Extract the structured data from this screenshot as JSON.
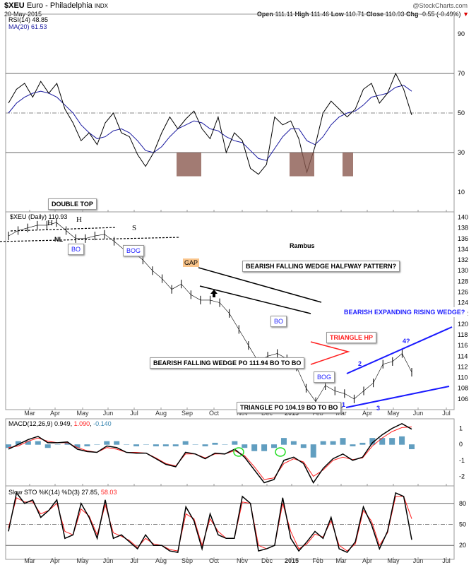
{
  "header": {
    "symbol": "$XEU",
    "name": "Euro - Philadelphia",
    "exchange": "INDX",
    "date": "20-May-2015",
    "copyright": "@StockCharts.com",
    "open_label": "Open",
    "open": "111.11",
    "high_label": "High",
    "high": "111.46",
    "low_label": "Low",
    "low": "110.71",
    "close_label": "Close",
    "close": "110.93",
    "chg_label": "Chg",
    "chg": "-0.55 (-0.49%)"
  },
  "colors": {
    "price": "#000000",
    "ma": "#1a1aa0",
    "signal": "#ff2020",
    "hist": "#3a86b0",
    "wedge": "#1a1aff",
    "triangle": "#ff2020",
    "fill": "#8b5a50",
    "circle": "#22dd22"
  },
  "chart_data": [
    {
      "type": "line",
      "title": "RSI(14) 48.85",
      "ma_label": "MA(20) 61.53",
      "yticks": [
        "90",
        "70",
        "50",
        "30",
        "10"
      ],
      "ylim": [
        0,
        100
      ],
      "rsi": [
        55,
        62,
        65,
        58,
        66,
        60,
        65,
        52,
        45,
        36,
        40,
        34,
        45,
        50,
        40,
        38,
        29,
        23,
        30,
        40,
        48,
        42,
        47,
        51,
        42,
        37,
        48,
        30,
        40,
        36,
        22,
        19,
        24,
        48,
        44,
        46,
        37,
        20,
        33,
        50,
        56,
        52,
        48,
        52,
        62,
        65,
        55,
        60,
        70,
        62,
        49
      ],
      "ma": [
        50,
        55,
        58,
        60,
        61,
        60,
        58,
        54,
        50,
        44,
        40,
        37,
        38,
        41,
        42,
        40,
        36,
        31,
        30,
        33,
        38,
        42,
        44,
        46,
        45,
        42,
        41,
        38,
        36,
        35,
        31,
        27,
        26,
        32,
        38,
        42,
        42,
        36,
        34,
        38,
        44,
        48,
        50,
        51,
        54,
        58,
        59,
        60,
        63,
        64,
        61
      ]
    },
    {
      "type": "line",
      "title": "$XEU (Daily) 110.93",
      "yticks": [
        "140",
        "138",
        "136",
        "134",
        "132",
        "130",
        "128",
        "126",
        "124",
        "122",
        "120",
        "118",
        "116",
        "114",
        "112",
        "110",
        "108",
        "106"
      ],
      "ylim": [
        104,
        141
      ],
      "price": [
        136.5,
        137.5,
        138,
        138.5,
        138.5,
        139,
        137.5,
        136,
        136,
        136.5,
        136.8,
        135.5,
        134,
        133.5,
        132,
        130,
        128.5,
        126.5,
        127.5,
        125.5,
        124.5,
        124.5,
        124,
        122,
        119,
        116,
        113,
        114,
        114.5,
        113.5,
        112,
        108,
        105.5,
        108.5,
        107.5,
        107,
        106,
        107.5,
        109,
        112.5,
        113,
        114.5,
        111
      ],
      "annotations": [
        "DOUBLE TOP",
        "H",
        "H",
        "NL",
        "S",
        "BO",
        "BOG",
        "GAP",
        "Rambus",
        "BEARISH FALLING WEDGE HALFWAY PATTERN?",
        "BO",
        "TRIANGLE HP",
        "BEARISH FALLING WEDGE PO 111.94 BO TO BO",
        "BOG",
        "BEARISH EXPANDING RISING WEDGE?",
        "4?",
        "2",
        "1",
        "3",
        "TRIANGLE PO 104.19 BO TO BO"
      ]
    },
    {
      "type": "line",
      "title": "MACD(12,26,9)",
      "values": [
        "0.949",
        "1.090",
        "-0.140"
      ],
      "yticks": [
        "1",
        "0",
        "-1",
        "-2"
      ],
      "ylim": [
        -2.6,
        1.6
      ],
      "macd": [
        -0.3,
        0,
        0.3,
        0.5,
        0.1,
        0.1,
        0.15,
        -0.3,
        -0.45,
        -0.5,
        -0.1,
        -0.2,
        -0.5,
        -0.55,
        -0.55,
        -0.9,
        -1.25,
        -1.4,
        -0.5,
        -0.6,
        -0.9,
        -0.55,
        -0.6,
        -0.3,
        -0.8,
        -1.6,
        -2.4,
        -2.2,
        -1.0,
        -0.8,
        -1.2,
        -2.4,
        -1.5,
        -0.9,
        -0.6,
        -1.0,
        -0.8,
        0.1,
        0.6,
        1.0,
        1.3,
        0.95
      ],
      "signal": [
        -0.2,
        -0.1,
        0.2,
        0.4,
        0.2,
        0.1,
        0.1,
        -0.2,
        -0.4,
        -0.5,
        -0.2,
        -0.3,
        -0.5,
        -0.5,
        -0.55,
        -0.85,
        -1.2,
        -1.35,
        -0.6,
        -0.6,
        -0.85,
        -0.6,
        -0.6,
        -0.4,
        -0.7,
        -1.4,
        -2.2,
        -2.1,
        -1.2,
        -0.9,
        -1.1,
        -2.0,
        -1.6,
        -1.0,
        -0.8,
        -0.95,
        -0.85,
        -0.1,
        0.4,
        0.8,
        1.05,
        1.09
      ]
    },
    {
      "type": "line",
      "title": "Slow STO %K(14) %D(3)",
      "values": [
        "27.85",
        "58.03"
      ],
      "yticks": [
        "80",
        "50",
        "20"
      ],
      "ylim": [
        0,
        105
      ],
      "k": [
        40,
        95,
        80,
        85,
        60,
        70,
        85,
        30,
        35,
        80,
        60,
        30,
        85,
        30,
        35,
        25,
        15,
        35,
        20,
        20,
        12,
        10,
        75,
        55,
        15,
        65,
        35,
        30,
        30,
        90,
        80,
        12,
        15,
        20,
        88,
        30,
        12,
        25,
        40,
        30,
        60,
        15,
        10,
        25,
        75,
        50,
        15,
        40,
        95,
        90,
        28
      ],
      "d": [
        45,
        88,
        82,
        82,
        65,
        70,
        80,
        40,
        35,
        72,
        62,
        35,
        78,
        38,
        33,
        27,
        17,
        30,
        22,
        20,
        14,
        12,
        65,
        58,
        20,
        58,
        40,
        30,
        30,
        82,
        80,
        20,
        15,
        20,
        80,
        40,
        15,
        22,
        36,
        32,
        55,
        20,
        12,
        22,
        70,
        55,
        20,
        38,
        90,
        90,
        58
      ]
    },
    {
      "type": "axis",
      "months": [
        "Mar",
        "Apr",
        "May",
        "Jun",
        "Jul",
        "Aug",
        "Sep",
        "Oct",
        "Nov",
        "Dec",
        "2015",
        "Feb",
        "Mar",
        "Apr",
        "May",
        "Jun",
        "Jul"
      ]
    }
  ]
}
